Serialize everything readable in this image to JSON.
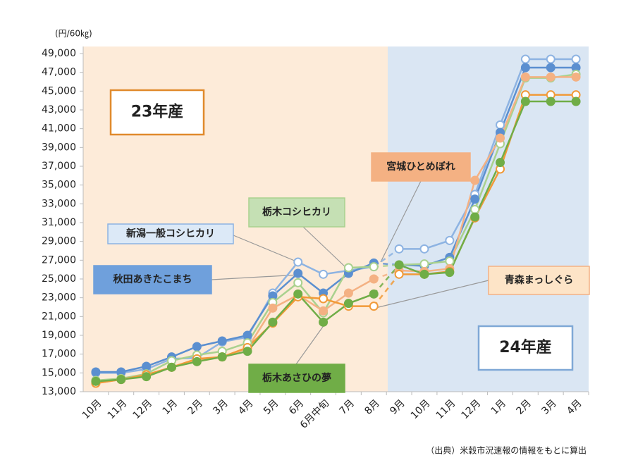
{
  "chart_data": {
    "type": "line",
    "unit_label": "(円/60㎏)",
    "source": "（出典）米穀市況速報の情報をもとに算出",
    "periods": [
      "23年産",
      "24年産"
    ],
    "categories": [
      "10月",
      "11月",
      "12月",
      "1月",
      "2月",
      "3月",
      "4月",
      "5月",
      "6月",
      "6月中旬",
      "7月",
      "8月",
      "9月",
      "10月",
      "11月",
      "12月",
      "1月",
      "2月",
      "3月",
      "4月"
    ],
    "ylim": [
      13000,
      49000
    ],
    "yticks": [
      {
        "value": 13000,
        "label": "13,000"
      },
      {
        "value": 15000,
        "label": "15,000"
      },
      {
        "value": 17000,
        "label": "17,000"
      },
      {
        "value": 19000,
        "label": "19,000"
      },
      {
        "value": 21000,
        "label": "21,000"
      },
      {
        "value": 23000,
        "label": "23,000"
      },
      {
        "value": 25000,
        "label": "25,000"
      },
      {
        "value": 27000,
        "label": "27,000"
      },
      {
        "value": 29000,
        "label": "29,000"
      },
      {
        "value": 31000,
        "label": "31,000"
      },
      {
        "value": 33000,
        "label": "33,000"
      },
      {
        "value": 35000,
        "label": "35,000"
      },
      {
        "value": 37000,
        "label": "37,000"
      },
      {
        "value": 39000,
        "label": "39,000"
      },
      {
        "value": 41000,
        "label": "41,000"
      },
      {
        "value": 43000,
        "label": "43,000"
      },
      {
        "value": 45000,
        "label": "45,000"
      },
      {
        "value": 47000,
        "label": "47,000"
      },
      {
        "value": 49000,
        "label": "49,000"
      }
    ],
    "series": [
      {
        "name": "新潟一般コシヒカリ",
        "color": "#8db3e2",
        "marker": "hollow",
        "values": [
          15000,
          15000,
          15400,
          16500,
          16600,
          18300,
          18800,
          23500,
          26800,
          25500,
          25900,
          26300,
          28200,
          28200,
          29100,
          34000,
          41400,
          48400,
          48400,
          48400
        ]
      },
      {
        "name": "秋田あきたこまち",
        "color": "#5b8fd0",
        "marker": "filled",
        "values": [
          15100,
          15100,
          15700,
          16700,
          17800,
          18400,
          19000,
          23200,
          25600,
          23500,
          25600,
          26700,
          26500,
          26400,
          27300,
          33500,
          40600,
          47500,
          47500,
          47500
        ]
      },
      {
        "name": "栃木コシヒカリ",
        "color": "#a9d18e",
        "marker": "hollow",
        "values": [
          14200,
          14400,
          14900,
          16300,
          16900,
          17300,
          18200,
          22500,
          24600,
          21400,
          26200,
          26300,
          26500,
          26600,
          26900,
          32400,
          39400,
          46400,
          46400,
          46800
        ]
      },
      {
        "name": "宮城ひとめぼれ",
        "color": "#f4b183",
        "marker": "filled",
        "values": [
          13900,
          14300,
          14700,
          15600,
          16400,
          16700,
          17600,
          21900,
          23300,
          21600,
          23500,
          25000,
          25900,
          25800,
          26100,
          35500,
          40000,
          46500,
          46500,
          46500
        ]
      },
      {
        "name": "青森まっしぐら",
        "color": "#f19a38",
        "marker": "hollow",
        "values": [
          13900,
          14300,
          14800,
          15600,
          16500,
          16700,
          17700,
          20300,
          23100,
          22900,
          22100,
          22100,
          25500,
          25500,
          25800,
          31500,
          36700,
          44600,
          44600,
          44600
        ]
      },
      {
        "name": "栃木あさひの夢",
        "color": "#70ad47",
        "marker": "filled",
        "values": [
          14100,
          14300,
          14600,
          15600,
          16200,
          16700,
          17300,
          20400,
          23400,
          20400,
          22400,
          23400,
          26500,
          25500,
          25700,
          31600,
          37400,
          43900,
          43900,
          43900
        ]
      }
    ]
  }
}
